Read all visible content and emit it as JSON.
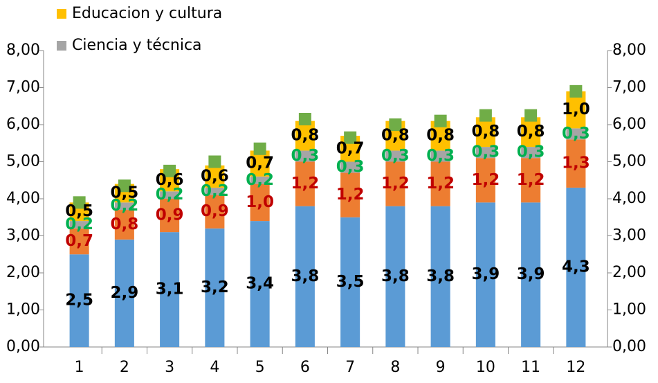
{
  "chart_data": {
    "type": "bar",
    "stacked": true,
    "categories": [
      "1",
      "2",
      "3",
      "4",
      "5",
      "6",
      "7",
      "8",
      "9",
      "10",
      "11",
      "12"
    ],
    "series": [
      {
        "color": "#5b9bd5",
        "label_color": "#000000",
        "values": [
          2.5,
          2.9,
          3.1,
          3.2,
          3.4,
          3.8,
          3.5,
          3.8,
          3.8,
          3.9,
          3.9,
          4.3
        ],
        "value_labels": [
          "2,5",
          "2,9",
          "3,1",
          "3,2",
          "3,4",
          "3,8",
          "3,5",
          "3,8",
          "3,8",
          "3,9",
          "3,9",
          "4,3"
        ]
      },
      {
        "color": "#ed7d31",
        "label_color": "#c00000",
        "values": [
          0.7,
          0.8,
          0.9,
          0.9,
          1.0,
          1.2,
          1.2,
          1.2,
          1.2,
          1.2,
          1.2,
          1.3
        ],
        "value_labels": [
          "0,7",
          "0,8",
          "0,9",
          "0,9",
          "1,0",
          "1,2",
          "1,2",
          "1,2",
          "1,2",
          "1,2",
          "1,2",
          "1,3"
        ]
      },
      {
        "name": "Ciencia y técnica",
        "color": "#a5a5a5",
        "label_color": "#00b050",
        "values": [
          0.2,
          0.2,
          0.2,
          0.2,
          0.2,
          0.3,
          0.3,
          0.3,
          0.3,
          0.3,
          0.3,
          0.3
        ],
        "value_labels": [
          "0,2",
          "0,2",
          "0,2",
          "0,2",
          "0,2",
          "0,3",
          "0,3",
          "0,3",
          "0,3",
          "0,3",
          "0,3",
          "0,3"
        ]
      },
      {
        "name": "Educacion y cultura",
        "color": "#ffc000",
        "label_color": "#000000",
        "values": [
          0.5,
          0.5,
          0.6,
          0.6,
          0.7,
          0.8,
          0.7,
          0.8,
          0.8,
          0.8,
          0.8,
          1.0
        ],
        "value_labels": [
          "0,5",
          "0,5",
          "0,6",
          "0,6",
          "0,7",
          "0,8",
          "0,7",
          "0,8",
          "0,8",
          "0,8",
          "0,8",
          "1,0"
        ]
      },
      {
        "color": "#70ad47",
        "marker": "square",
        "values": [
          3.9,
          4.35,
          4.75,
          5.0,
          5.35,
          6.15,
          5.65,
          6.0,
          6.1,
          6.25,
          6.25,
          6.9
        ]
      }
    ],
    "ylim": [
      0,
      8
    ],
    "yticks": [
      {
        "value": 0,
        "label": "0,00"
      },
      {
        "value": 1,
        "label": "1,00"
      },
      {
        "value": 2,
        "label": "2,00"
      },
      {
        "value": 3,
        "label": "3,00"
      },
      {
        "value": 4,
        "label": "4,00"
      },
      {
        "value": 5,
        "label": "5,00"
      },
      {
        "value": 6,
        "label": "6,00"
      },
      {
        "value": 7,
        "label": "7,00"
      },
      {
        "value": 8,
        "label": "8,00"
      }
    ],
    "y2lim": [
      0,
      8
    ],
    "y2ticks": [
      {
        "value": 0,
        "label": "0,00"
      },
      {
        "value": 1,
        "label": "1,00"
      },
      {
        "value": 2,
        "label": "2,00"
      },
      {
        "value": 3,
        "label": "3,00"
      },
      {
        "value": 4,
        "label": "4,00"
      },
      {
        "value": 5,
        "label": "5,00"
      },
      {
        "value": 6,
        "label": "6,00"
      },
      {
        "value": 7,
        "label": "7,00"
      },
      {
        "value": 8,
        "label": "8,00"
      }
    ],
    "legend": "top-left"
  }
}
